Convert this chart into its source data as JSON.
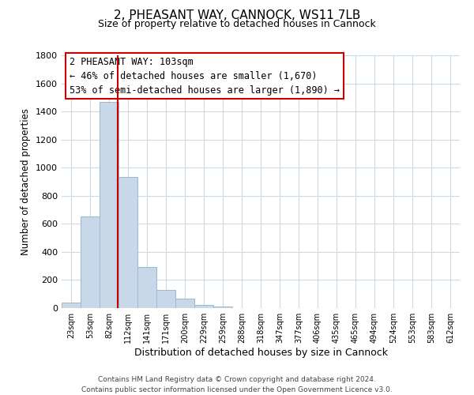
{
  "title": "2, PHEASANT WAY, CANNOCK, WS11 7LB",
  "subtitle": "Size of property relative to detached houses in Cannock",
  "xlabel": "Distribution of detached houses by size in Cannock",
  "ylabel": "Number of detached properties",
  "bar_labels": [
    "23sqm",
    "53sqm",
    "82sqm",
    "112sqm",
    "141sqm",
    "171sqm",
    "200sqm",
    "229sqm",
    "259sqm",
    "288sqm",
    "318sqm",
    "347sqm",
    "377sqm",
    "406sqm",
    "435sqm",
    "465sqm",
    "494sqm",
    "524sqm",
    "553sqm",
    "583sqm",
    "612sqm"
  ],
  "bar_values": [
    40,
    650,
    1470,
    935,
    290,
    130,
    65,
    25,
    10,
    0,
    0,
    0,
    0,
    0,
    0,
    0,
    0,
    0,
    0,
    0,
    0
  ],
  "bar_color": "#c8d8e8",
  "bar_edge_color": "#a0b8cc",
  "vline_x": 2.45,
  "vline_color": "#cc0000",
  "ylim": [
    0,
    1800
  ],
  "yticks": [
    0,
    200,
    400,
    600,
    800,
    1000,
    1200,
    1400,
    1600,
    1800
  ],
  "annotation_title": "2 PHEASANT WAY: 103sqm",
  "annotation_line1": "← 46% of detached houses are smaller (1,670)",
  "annotation_line2": "53% of semi-detached houses are larger (1,890) →",
  "footer_line1": "Contains HM Land Registry data © Crown copyright and database right 2024.",
  "footer_line2": "Contains public sector information licensed under the Open Government Licence v3.0.",
  "background_color": "#ffffff",
  "grid_color": "#d0d8e0"
}
